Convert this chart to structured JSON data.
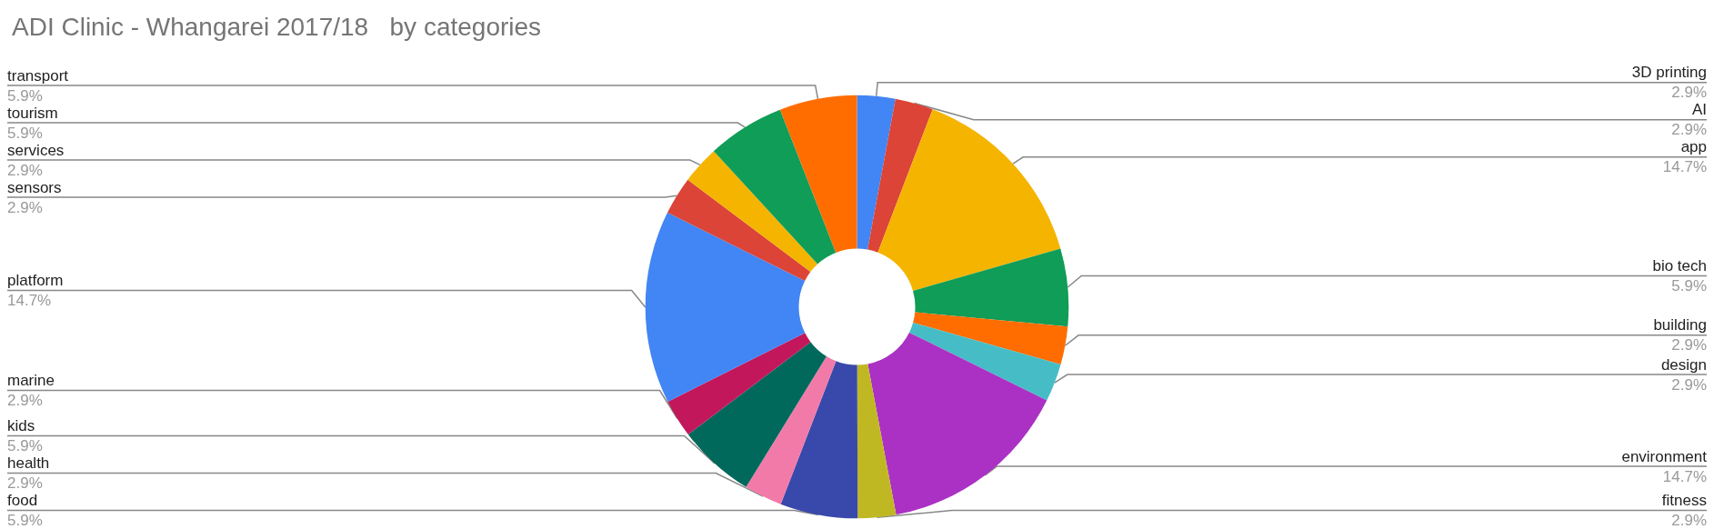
{
  "chart_data": {
    "type": "donut",
    "title": "ADI Clinic - Whangarei 2017/18   by categories",
    "categories": [
      "3D printing",
      "AI",
      "app",
      "bio tech",
      "building",
      "design",
      "environment",
      "fitness",
      "food",
      "health",
      "kids",
      "marine",
      "platform",
      "sensors",
      "services",
      "tourism",
      "transport"
    ],
    "values": [
      2.9,
      2.9,
      14.7,
      5.9,
      2.9,
      2.9,
      14.7,
      2.9,
      5.9,
      2.9,
      5.9,
      2.9,
      14.7,
      2.9,
      2.9,
      5.9,
      5.9
    ],
    "colors": [
      "#4285f4",
      "#db4437",
      "#f4b400",
      "#0f9d58",
      "#ff6d00",
      "#46bdc6",
      "#ab30c4",
      "#c0b823",
      "#3949ab",
      "#f27aa8",
      "#00695c",
      "#c2185b",
      "#4285f4",
      "#db4437",
      "#f4b400",
      "#0f9d58",
      "#ff6d00"
    ],
    "value_labels": [
      "2.9%",
      "2.9%",
      "14.7%",
      "5.9%",
      "2.9%",
      "2.9%",
      "14.7%",
      "2.9%",
      "5.9%",
      "2.9%",
      "5.9%",
      "2.9%",
      "14.7%",
      "2.9%",
      "2.9%",
      "5.9%",
      "5.9%"
    ],
    "legend": false
  }
}
